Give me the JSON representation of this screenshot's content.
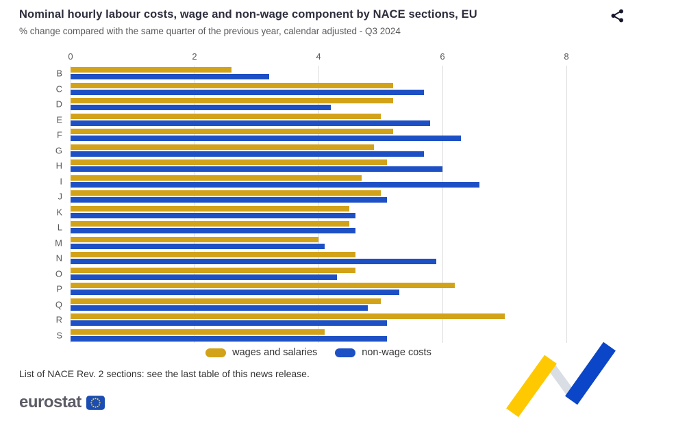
{
  "chart_data": {
    "type": "bar",
    "orientation": "horizontal",
    "title": "Nominal hourly labour costs, wage and non-wage component by NACE sections, EU",
    "subtitle": "% change compared with the same quarter of the previous year, calendar adjusted - Q3 2024",
    "categories": [
      "B",
      "C",
      "D",
      "E",
      "F",
      "G",
      "H",
      "I",
      "J",
      "K",
      "L",
      "M",
      "N",
      "O",
      "P",
      "Q",
      "R",
      "S"
    ],
    "series": [
      {
        "key": "wages",
        "name": "wages and salaries",
        "color": "#d2a218",
        "values": [
          2.6,
          5.2,
          5.2,
          5.0,
          5.2,
          4.9,
          5.1,
          4.7,
          5.0,
          4.5,
          4.5,
          4.0,
          4.6,
          4.6,
          6.2,
          5.0,
          7.0,
          4.1
        ]
      },
      {
        "key": "nonwage",
        "name": "non-wage costs",
        "color": "#1d4fc5",
        "values": [
          3.2,
          5.7,
          4.2,
          5.8,
          6.3,
          5.7,
          6.0,
          6.6,
          5.1,
          4.6,
          4.6,
          4.1,
          5.9,
          4.3,
          5.3,
          4.8,
          5.1,
          5.1
        ]
      }
    ],
    "xlim": [
      0,
      8
    ],
    "xticks": [
      0,
      2,
      4,
      6,
      8
    ],
    "grid": "vertical-gridlines",
    "legend_position": "bottom"
  },
  "footnote": "List of NACE Rev. 2 sections: see the last table of this news release.",
  "branding": {
    "logo_text": "eurostat"
  },
  "icons": {
    "share": "share-nodes",
    "flag": "eu-flag"
  },
  "colors": {
    "title_text": "#2d2d3c",
    "muted_text": "#595959",
    "body_text": "#333333",
    "gridline": "#dcdcdc",
    "logo_text": "#5c5c66",
    "logo_flag_blue": "#1b4db4",
    "flag_star_yellow": "#ffd617",
    "deco_yellow": "#fec900",
    "deco_blue": "#0b45c8",
    "deco_gray": "#d9dee4",
    "share_icon": "#16182c"
  }
}
